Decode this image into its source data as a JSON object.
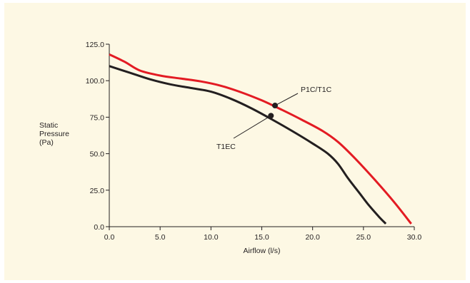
{
  "chart_data": {
    "type": "line",
    "xlabel": "Airflow (l/s)",
    "ylabel": [
      "Static",
      "Pressure",
      "(Pa)"
    ],
    "xlim": [
      0,
      30
    ],
    "ylim": [
      0,
      125
    ],
    "x_ticks": [
      "0.0",
      "5.0",
      "10.0",
      "15.0",
      "20.0",
      "25.0",
      "30.0"
    ],
    "y_ticks": [
      "0.0",
      "25.0",
      "50.0",
      "75.0",
      "100.0",
      "125.0"
    ],
    "grid": false,
    "background_color": "#fdf8e4",
    "series": [
      {
        "color": "#e31b23",
        "points": [
          [
            0,
            118
          ],
          [
            1.5,
            113
          ],
          [
            3,
            107
          ],
          [
            5,
            103.5
          ],
          [
            7,
            101.5
          ],
          [
            9,
            99.5
          ],
          [
            11,
            96.5
          ],
          [
            13,
            92
          ],
          [
            15,
            86.5
          ],
          [
            17,
            80
          ],
          [
            19,
            73
          ],
          [
            21,
            65.5
          ],
          [
            22.5,
            58
          ],
          [
            24,
            48
          ],
          [
            26,
            33
          ],
          [
            28,
            17
          ],
          [
            29.7,
            2
          ]
        ]
      },
      {
        "color": "#231f20",
        "points": [
          [
            0,
            110
          ],
          [
            2,
            105.5
          ],
          [
            4,
            101
          ],
          [
            6,
            97.5
          ],
          [
            8,
            95
          ],
          [
            10,
            92.5
          ],
          [
            12,
            87.5
          ],
          [
            14,
            81
          ],
          [
            16,
            73.5
          ],
          [
            18,
            65.5
          ],
          [
            20,
            57
          ],
          [
            21.5,
            50
          ],
          [
            22.5,
            43
          ],
          [
            23.5,
            33
          ],
          [
            24.5,
            24
          ],
          [
            25.5,
            15
          ],
          [
            26.5,
            7
          ],
          [
            27.2,
            2
          ]
        ]
      }
    ],
    "annotations": [
      {
        "label": "P1C/T1C",
        "point": [
          16.3,
          83
        ]
      },
      {
        "label": "T1EC",
        "point": [
          15.9,
          76
        ]
      }
    ]
  }
}
